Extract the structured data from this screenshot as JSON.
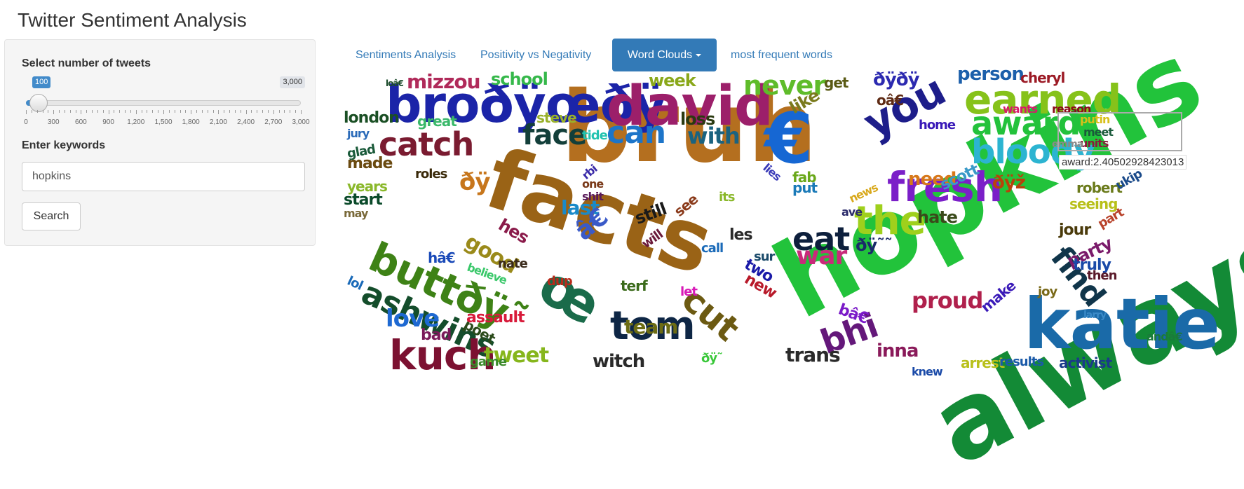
{
  "app": {
    "title": "Twitter Sentiment Analysis"
  },
  "sidebar": {
    "tweets_label": "Select number of tweets",
    "slider": {
      "value_label": "100",
      "max_label": "3,000",
      "value": 100,
      "min": 0,
      "max": 3000,
      "tick_labels": [
        "0",
        "300",
        "600",
        "900",
        "1,200",
        "1,500",
        "1,800",
        "2,100",
        "2,400",
        "2,700",
        "3,000"
      ]
    },
    "keywords_label": "Enter keywords",
    "keywords_value": "hopkins",
    "search_label": "Search"
  },
  "tabs": [
    {
      "label": "Sentiments Analysis"
    },
    {
      "label": "Positivity vs Negativity"
    },
    {
      "label": "Word Clouds"
    },
    {
      "label": "most frequent words"
    }
  ],
  "wordcloud": {
    "tooltip": "award:2.40502928423013",
    "words": [
      {
        "t": "hopkins",
        "c": "#22c33b"
      },
      {
        "t": "always",
        "c": "#138a36"
      },
      {
        "t": "facts",
        "c": "#9a6316"
      },
      {
        "t": "bruh",
        "c": "#b46f1f"
      },
      {
        "t": "katie",
        "c": "#1a6aa8"
      },
      {
        "t": "broðÿœðÿ",
        "c": "#1b24a8"
      },
      {
        "t": "david",
        "c": "#9c1f6a"
      },
      {
        "t": "€",
        "c": "#1667d3"
      },
      {
        "t": "you",
        "c": "#1d1d8a"
      },
      {
        "t": "earned",
        "c": "#86c21a"
      },
      {
        "t": "award",
        "c": "#23c23b"
      },
      {
        "t": "bloody",
        "c": "#2cb4d1"
      },
      {
        "t": "fresh",
        "c": "#7b1fc8"
      },
      {
        "t": "the",
        "c": "#9fd01c"
      },
      {
        "t": "eat",
        "c": "#0d1f3c"
      },
      {
        "t": "buttðÿ˜",
        "c": "#3e8216"
      },
      {
        "t": "ashwins",
        "c": "#144d2b"
      },
      {
        "t": "œ",
        "c": "#1a6b4a"
      },
      {
        "t": "catch",
        "c": "#7a1b30"
      },
      {
        "t": "face",
        "c": "#133f3a"
      },
      {
        "t": "can",
        "c": "#1d75c9"
      },
      {
        "t": "with",
        "c": "#1a6380"
      },
      {
        "t": "never",
        "c": "#5fbc2a"
      },
      {
        "t": "tom",
        "c": "#0e2645"
      },
      {
        "t": "cut",
        "c": "#6c5a12"
      },
      {
        "t": "bhi",
        "c": "#64187a"
      },
      {
        "t": "find",
        "c": "#10354a"
      },
      {
        "t": "proud",
        "c": "#b0204c"
      },
      {
        "t": "war",
        "c": "#c92a7a"
      },
      {
        "t": "kuch",
        "c": "#7c1131"
      },
      {
        "t": "love",
        "c": "#1e69d2"
      },
      {
        "t": "tweet",
        "c": "#86b61c"
      },
      {
        "t": "team",
        "c": "#6c6c14"
      },
      {
        "t": "mizzou",
        "c": "#b02a5a"
      },
      {
        "t": "school",
        "c": "#35b84a"
      },
      {
        "t": "week",
        "c": "#8aa81a"
      },
      {
        "t": "person",
        "c": "#1c5faa"
      },
      {
        "t": "cheryl",
        "c": "#9c1a25"
      },
      {
        "t": "ðÿðÿ",
        "c": "#2c2ab0"
      },
      {
        "t": "oâ€",
        "c": "#5e2a14"
      },
      {
        "t": "like",
        "c": "#7a7a1c"
      },
      {
        "t": "get",
        "c": "#5a5a14"
      },
      {
        "t": "london",
        "c": "#1a4f24"
      },
      {
        "t": "great",
        "c": "#3ab86a"
      },
      {
        "t": "steve",
        "c": "#99b12a"
      },
      {
        "t": "loss",
        "c": "#2a3a10"
      },
      {
        "t": "tide",
        "c": "#22c3b0"
      },
      {
        "t": "jury",
        "c": "#2a6ab8"
      },
      {
        "t": "glad",
        "c": "#1a5a3a"
      },
      {
        "t": "made",
        "c": "#6a4a10"
      },
      {
        "t": "ðÿ",
        "c": "#c7761c"
      },
      {
        "t": "roles",
        "c": "#3a2a0a"
      },
      {
        "t": "years",
        "c": "#8ab82a"
      },
      {
        "t": "start",
        "c": "#0a4a2a"
      },
      {
        "t": "may",
        "c": "#7a6a3a"
      },
      {
        "t": "last",
        "c": "#1a8ac8"
      },
      {
        "t": "â€",
        "c": "#3a5ac8"
      },
      {
        "t": "still",
        "c": "#1a1a1a"
      },
      {
        "t": "see",
        "c": "#8a3a1a"
      },
      {
        "t": "hes",
        "c": "#8a1a4a"
      },
      {
        "t": "will",
        "c": "#6a1a3a"
      },
      {
        "t": "rbi",
        "c": "#3a2aa8"
      },
      {
        "t": "one",
        "c": "#7a3a1a"
      },
      {
        "t": "shit",
        "c": "#5a1a5a"
      },
      {
        "t": "need",
        "c": "#d7781a"
      },
      {
        "t": "scott",
        "c": "#3a9ac8"
      },
      {
        "t": "fab",
        "c": "#6aa81a"
      },
      {
        "t": "put",
        "c": "#1a7ab8"
      },
      {
        "t": "lies",
        "c": "#3a3ab8"
      },
      {
        "t": "its",
        "c": "#8ab82a"
      },
      {
        "t": "ðÿž",
        "c": "#b8420a"
      },
      {
        "t": "robert",
        "c": "#6a7a1a"
      },
      {
        "t": "seeing",
        "c": "#b8c01a"
      },
      {
        "t": "hate",
        "c": "#3a4a1a"
      },
      {
        "t": "news",
        "c": "#d8a81a"
      },
      {
        "t": "ave",
        "c": "#2a2a6a"
      },
      {
        "t": "les",
        "c": "#2a2a2a"
      },
      {
        "t": "call",
        "c": "#1a6ab8"
      },
      {
        "t": "ðÿ˜˜",
        "c": "#1a2a6a"
      },
      {
        "t": "jour",
        "c": "#4a3a0a"
      },
      {
        "t": "party",
        "c": "#7a1a6a"
      },
      {
        "t": "truly",
        "c": "#1a4aa8"
      },
      {
        "t": "then",
        "c": "#5a1a2a"
      },
      {
        "t": "part",
        "c": "#b8422a"
      },
      {
        "t": "ukip",
        "c": "#1a4a8a"
      },
      {
        "t": "putin",
        "c": "#d8c01a"
      },
      {
        "t": "meet",
        "c": "#1a5a3a"
      },
      {
        "t": "units",
        "c": "#8a1a3a"
      },
      {
        "t": "emma",
        "c": "#8a8a8a"
      },
      {
        "t": "wants",
        "c": "#d81a6a"
      },
      {
        "t": "reason",
        "c": "#8a0a1a"
      },
      {
        "t": "home",
        "c": "#3a1ab8"
      },
      {
        "t": "good",
        "c": "#9a8a1a"
      },
      {
        "t": "hâ€",
        "c": "#1a4ab8"
      },
      {
        "t": "nate",
        "c": "#3a2a1a"
      },
      {
        "t": "believe",
        "c": "#3ac86a"
      },
      {
        "t": "dup",
        "c": "#b82a1a"
      },
      {
        "t": "terf",
        "c": "#3a6a1a"
      },
      {
        "t": "let",
        "c": "#d81ab8"
      },
      {
        "t": "new",
        "c": "#b81a2a"
      },
      {
        "t": "two",
        "c": "#1a1aa8"
      },
      {
        "t": "sur",
        "c": "#1a4a6a"
      },
      {
        "t": "lol",
        "c": "#1a6ab8"
      },
      {
        "t": "assault",
        "c": "#d81a3a"
      },
      {
        "t": "poet",
        "c": "#2a4a1a"
      },
      {
        "t": "bad",
        "c": "#7a1a5a"
      },
      {
        "t": "game",
        "c": "#3a8a2a"
      },
      {
        "t": "witch",
        "c": "#2a2a2a"
      },
      {
        "t": "ðÿ˜",
        "c": "#3ac83a"
      },
      {
        "t": "trans",
        "c": "#2a2a2a"
      },
      {
        "t": "bâ€",
        "c": "#7a1ac8"
      },
      {
        "t": "inna",
        "c": "#8a1a5a"
      },
      {
        "t": "knew",
        "c": "#1a4aa8"
      },
      {
        "t": "arrest",
        "c": "#b8c01a"
      },
      {
        "t": "results",
        "c": "#1a5aa8"
      },
      {
        "t": "activist",
        "c": "#1a3a8a"
      },
      {
        "t": "andâ€",
        "c": "#1a7a3a"
      },
      {
        "t": "larry",
        "c": "#3a8ac8"
      },
      {
        "t": "joy",
        "c": "#7a6a1a"
      },
      {
        "t": "make",
        "c": "#3a1ab8"
      },
      {
        "t": "loâ€",
        "c": "#1a4a2a"
      }
    ]
  }
}
